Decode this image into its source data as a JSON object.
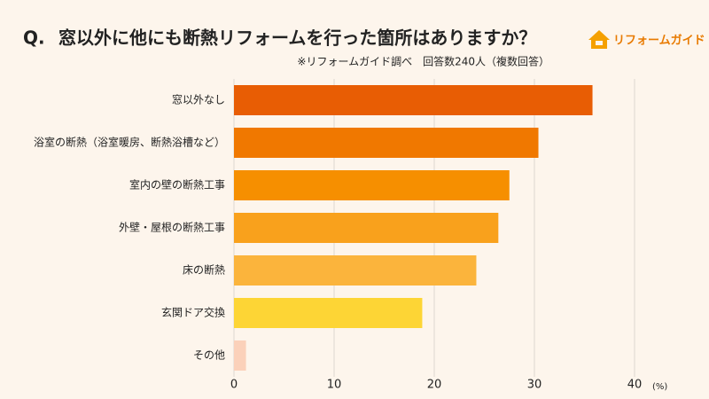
{
  "chart_data": {
    "type": "hbar",
    "question_label": "Q.",
    "title": "窓以外に他にも断熱リフォームを行った箇所はありますか？",
    "subtitle": "※リフォームガイド調べ　回答数240人（複数回答）",
    "brand": "リフォームガイド",
    "x_unit": "(%)",
    "categories": [
      "窓以外なし",
      "浴室の断熱（浴室暖房、断熱浴槽など）",
      "室内の壁の断熱工事",
      "外壁・屋根の断熱工事",
      "床の断熱",
      "玄関ドア交換",
      "その他"
    ],
    "values": [
      35.8,
      30.4,
      27.5,
      26.4,
      24.2,
      18.8,
      1.2
    ],
    "colors": [
      "#e85d04",
      "#f07800",
      "#f68f00",
      "#f9a11c",
      "#fbb43c",
      "#fdd535",
      "#fbd1ba"
    ],
    "xlim": [
      0,
      40
    ],
    "xticks": [
      0,
      10,
      20,
      30,
      40
    ],
    "grid": true
  }
}
